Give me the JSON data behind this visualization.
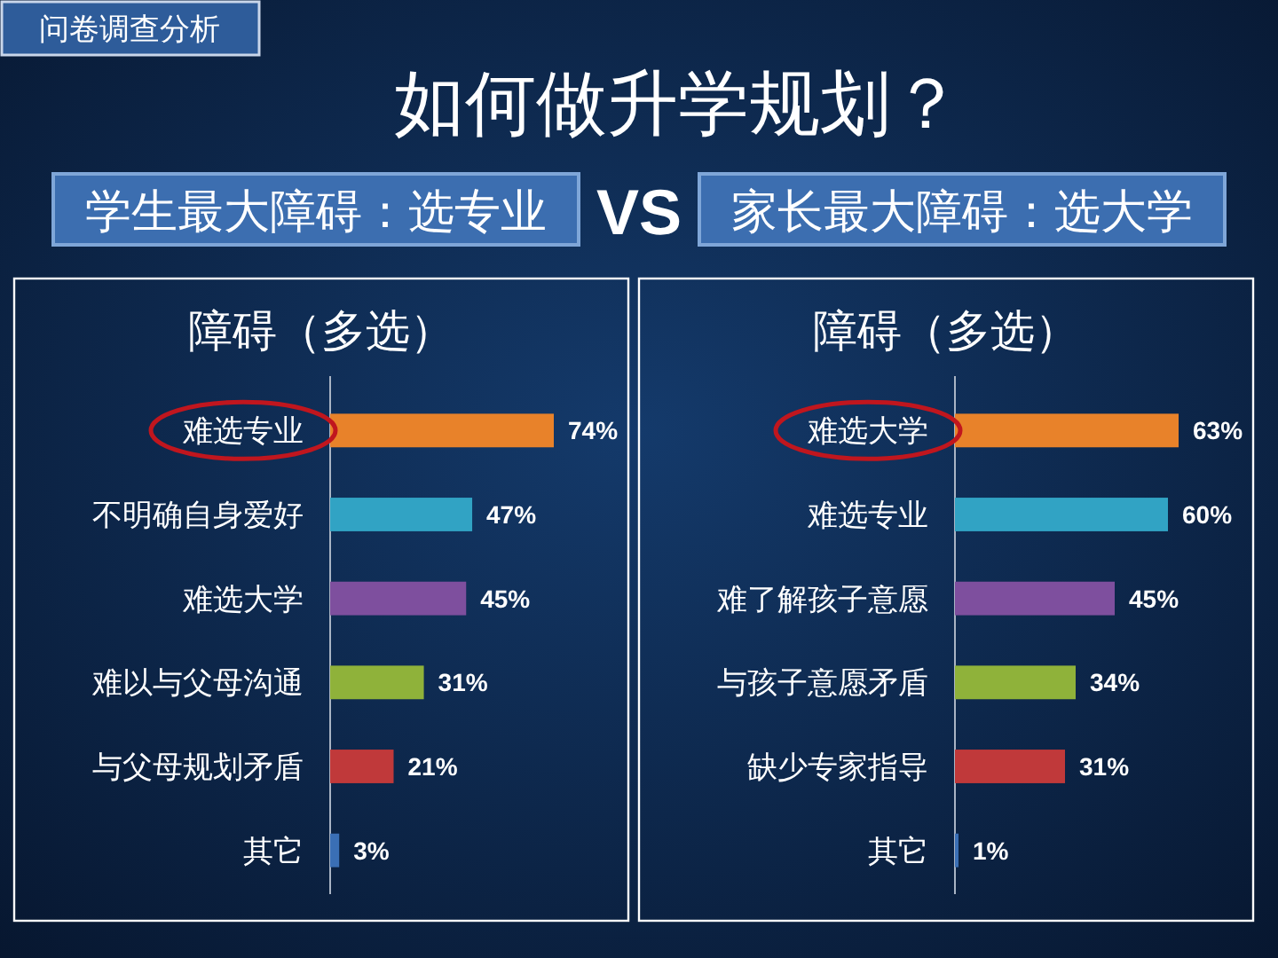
{
  "chart_data": [
    {
      "type": "other",
      "title": "如何做升学规划？",
      "annotations": [
        "问卷调查分析",
        "学生最大障碍：选专业",
        "VS",
        "家长最大障碍：选大学"
      ]
    },
    {
      "type": "bar",
      "orientation": "horizontal",
      "title": "障碍（多选）",
      "categories": [
        "难选专业",
        "不明确自身爱好",
        "难选大学",
        "难以与父母沟通",
        "与父母规划矛盾",
        "其它"
      ],
      "values": [
        74,
        47,
        45,
        31,
        21,
        3
      ],
      "value_labels": [
        "74%",
        "47%",
        "45%",
        "31%",
        "21%",
        "3%"
      ],
      "colors": [
        "#e8822a",
        "#31a3c4",
        "#7e4f9e",
        "#8fb23a",
        "#c0393a",
        "#3a6fb5"
      ]
    },
    {
      "type": "bar",
      "orientation": "horizontal",
      "title": "障碍（多选）",
      "categories": [
        "难选大学",
        "难选专业",
        "难了解孩子意愿",
        "与孩子意愿矛盾",
        "缺少专家指导",
        "其它"
      ],
      "values": [
        63,
        60,
        45,
        34,
        31,
        1
      ],
      "value_labels": [
        "63%",
        "60%",
        "45%",
        "34%",
        "31%",
        "1%"
      ],
      "colors": [
        "#e8822a",
        "#31a3c4",
        "#7e4f9e",
        "#8fb23a",
        "#c0393a",
        "#3a6fb5"
      ]
    }
  ]
}
